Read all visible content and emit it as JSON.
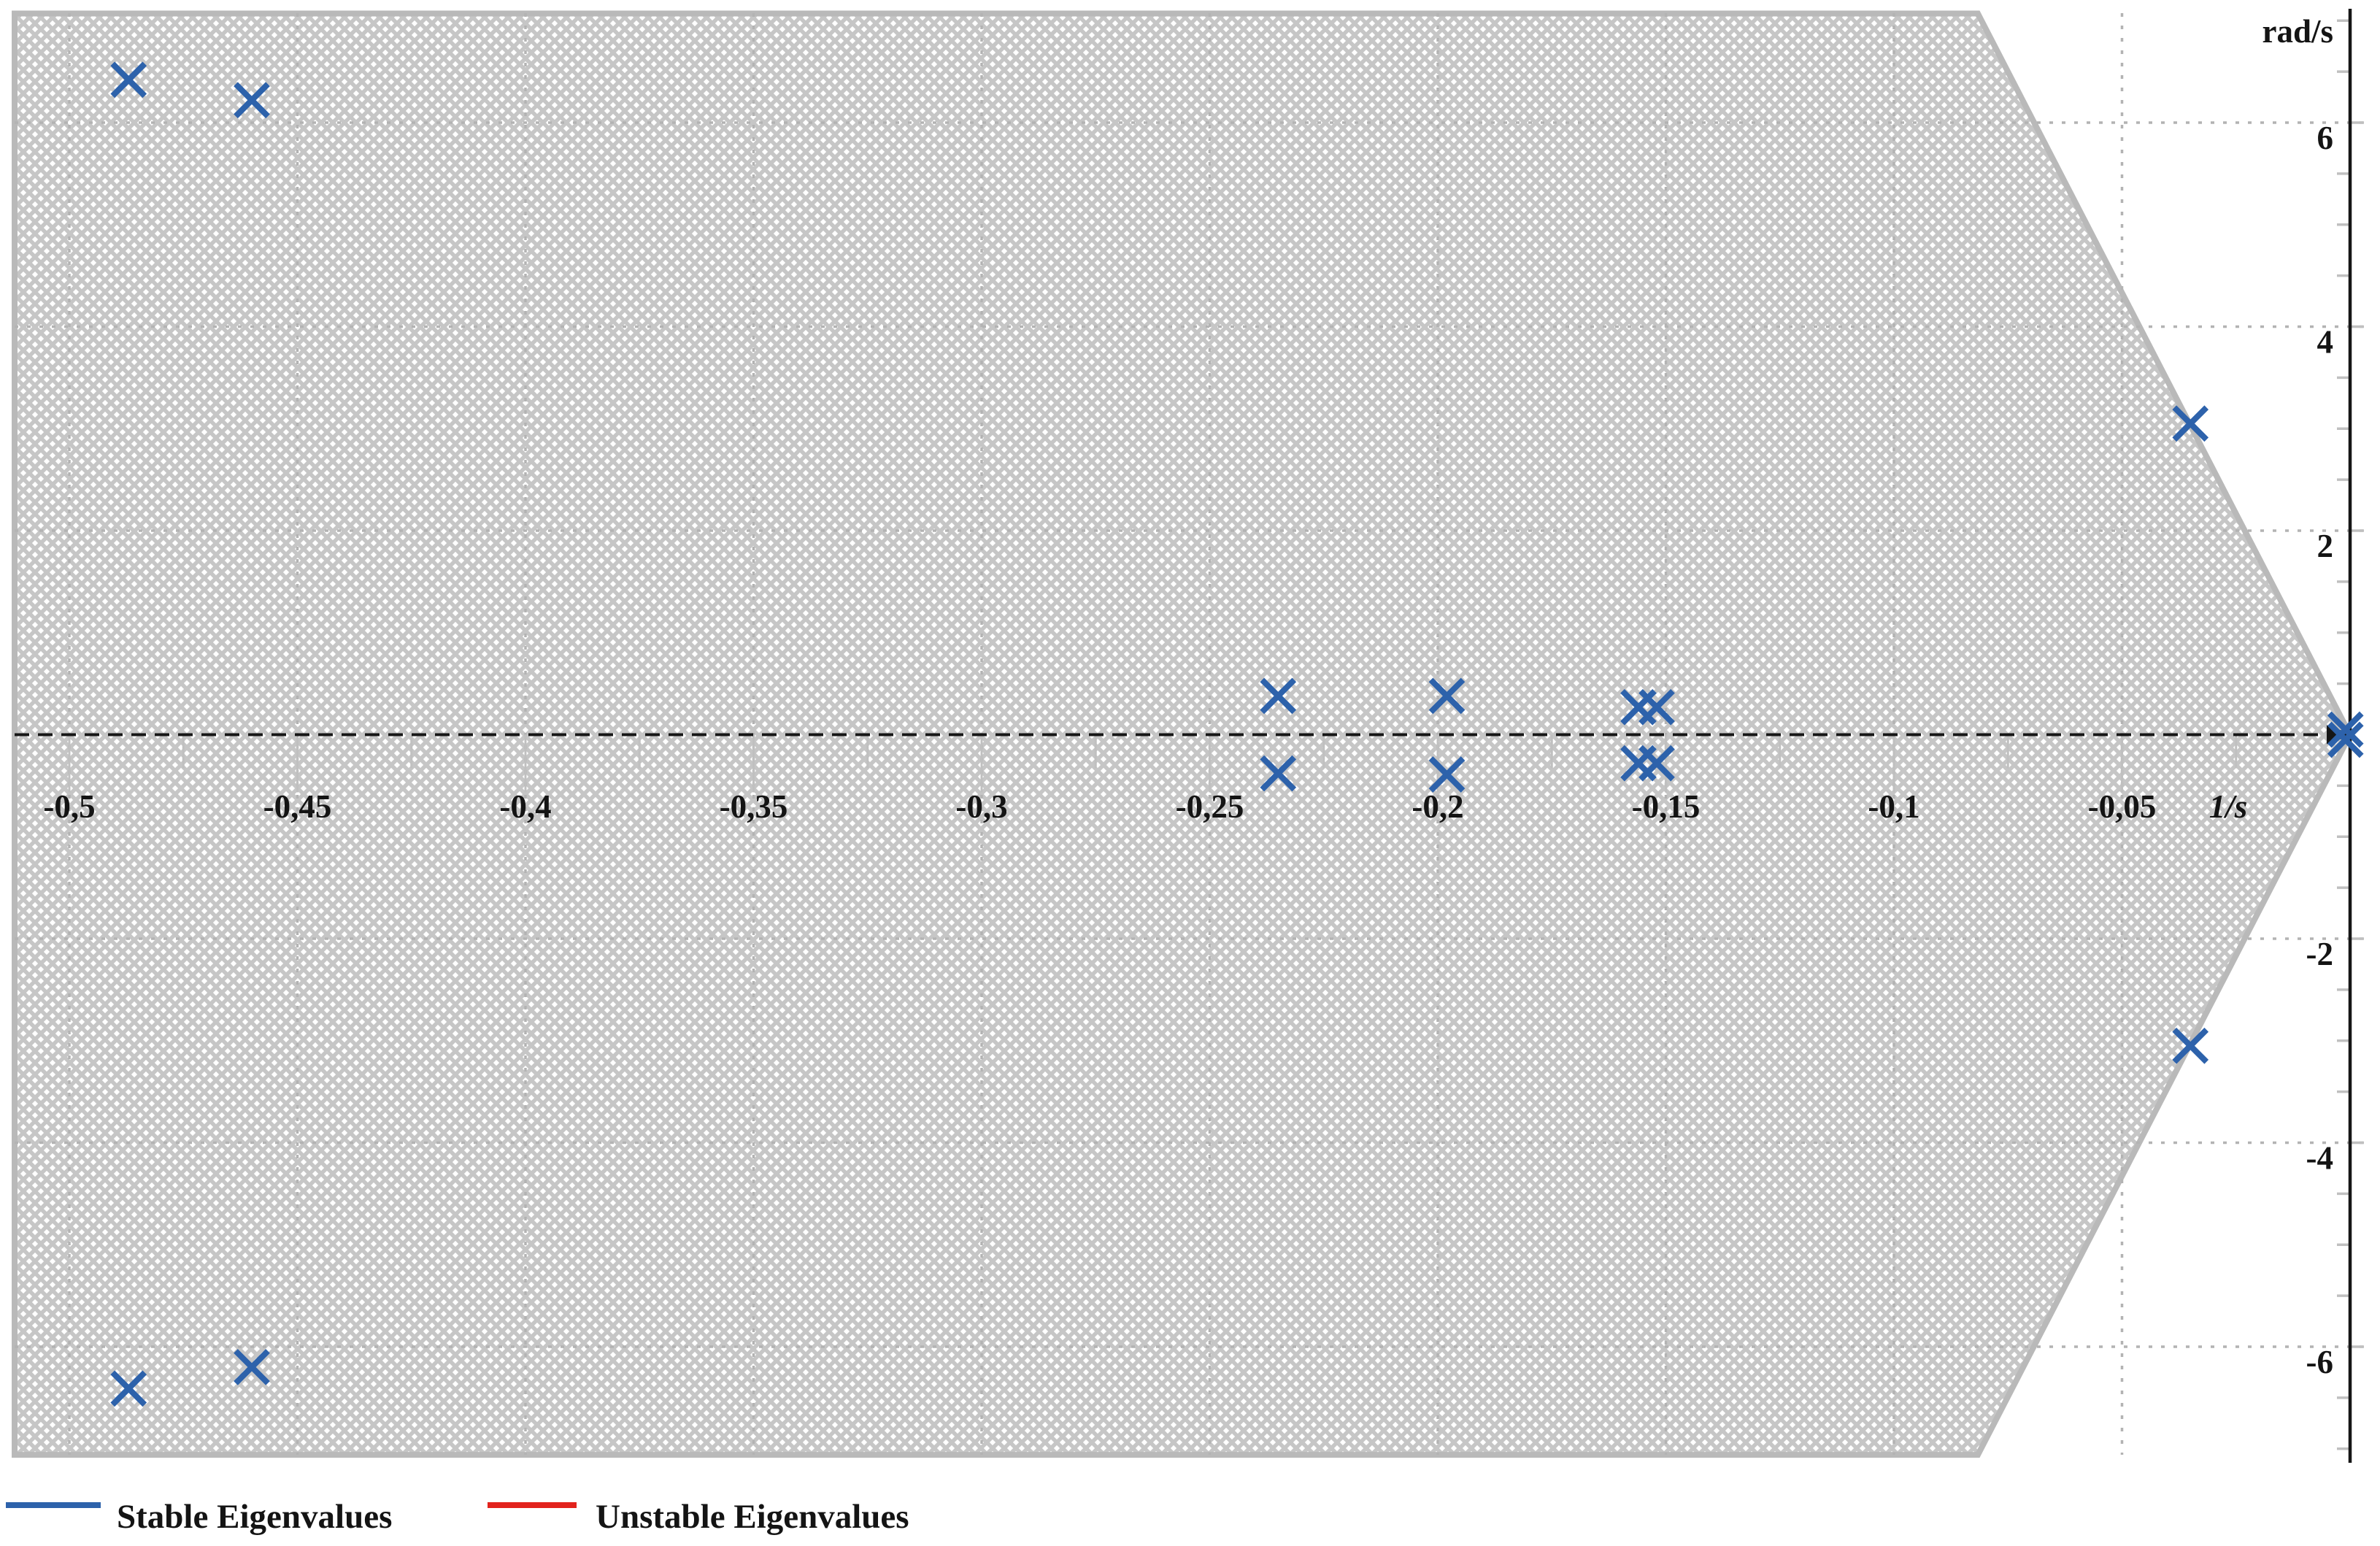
{
  "chart_data": {
    "type": "scatter",
    "title": "",
    "x_axis": {
      "unit_label": "1/s",
      "min": -0.512,
      "max": 0.0066,
      "major_ticks": [
        -0.5,
        -0.45,
        -0.4,
        -0.35,
        -0.3,
        -0.25,
        -0.2,
        -0.15,
        -0.1,
        -0.05
      ],
      "major_tick_labels": [
        "-0,5",
        "-0,45",
        "-0,4",
        "-0,35",
        "-0,3",
        "-0,25",
        "-0,2",
        "-0,15",
        "-0,1",
        "-0,05"
      ],
      "minor_tick_step": 0.025,
      "grid": true
    },
    "y_axis": {
      "unit_label": "rad/s",
      "min": -7.06,
      "max": 7.07,
      "major_ticks": [
        6,
        4,
        2,
        -2,
        -4,
        -6
      ],
      "major_tick_labels": [
        "6",
        "4",
        "2",
        "-2",
        "-4",
        "-6"
      ],
      "minor_tick_step": 0.5,
      "grid": true
    },
    "series": [
      {
        "name": "Stable Eigenvalues",
        "color": "#2d62ab",
        "marker": "x",
        "points": [
          {
            "re": -0.487,
            "im": 6.42
          },
          {
            "re": -0.46,
            "im": 6.22
          },
          {
            "re": -0.487,
            "im": -6.41
          },
          {
            "re": -0.46,
            "im": -6.2
          },
          {
            "re": -0.235,
            "im": 0.38
          },
          {
            "re": -0.235,
            "im": -0.38
          },
          {
            "re": -0.198,
            "im": 0.38
          },
          {
            "re": -0.198,
            "im": -0.39
          },
          {
            "re": -0.156,
            "im": 0.27
          },
          {
            "re": -0.156,
            "im": -0.28
          },
          {
            "re": -0.152,
            "im": 0.27
          },
          {
            "re": -0.152,
            "im": -0.28
          },
          {
            "re": -0.035,
            "im": 3.05
          },
          {
            "re": -0.035,
            "im": -3.05
          },
          {
            "re": -0.001,
            "im": 0.05
          },
          {
            "re": -0.001,
            "im": -0.05
          }
        ]
      },
      {
        "name": "Unstable Eigenvalues",
        "color": "#e2231d",
        "marker": "x",
        "points": []
      }
    ],
    "stable_region": {
      "style": "crosshatch",
      "vertices": [
        [
          -0.512,
          7.07
        ],
        [
          -0.0816,
          7.07
        ],
        [
          0,
          0
        ],
        [
          -0.0816,
          -7.06
        ],
        [
          -0.512,
          -7.06
        ]
      ]
    },
    "legend_position": "bottom-left"
  },
  "legend": {
    "items": [
      {
        "label": "Stable Eigenvalues",
        "color": "#2d62ab"
      },
      {
        "label": "Unstable Eigenvalues",
        "color": "#e2231d"
      }
    ]
  },
  "colors": {
    "stable": "#2d62ab",
    "unstable": "#e2231d",
    "hatch": "#c6c6c6",
    "region_border": "#b9b9b9",
    "gridline": "#b3b3b3",
    "tick": "#c0c0c0",
    "axis": "#161616",
    "text": "#141414"
  }
}
